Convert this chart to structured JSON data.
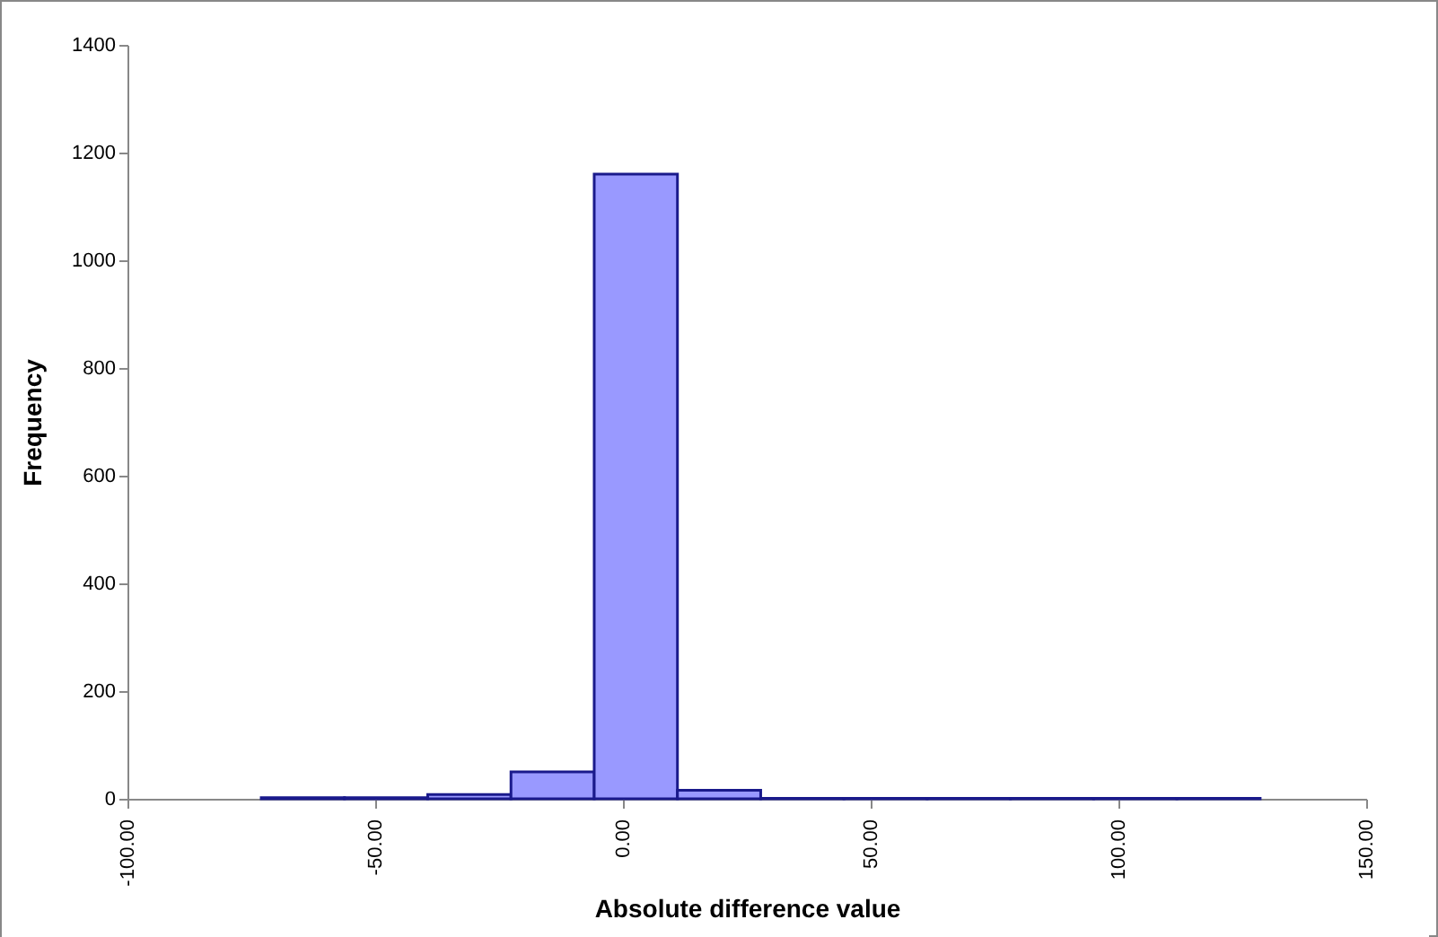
{
  "chart_data": {
    "type": "histogram",
    "xlabel": "Absolute difference value",
    "ylabel": "Frequency",
    "bins": [
      -73.0,
      -56.2,
      -39.4,
      -22.6,
      -5.8,
      11.0,
      27.8,
      44.6,
      61.4,
      78.2,
      95.0,
      111.8,
      128.6
    ],
    "values": [
      2,
      2,
      8,
      50,
      1160,
      16,
      1,
      1,
      1,
      1,
      1,
      1
    ],
    "color": "#9999ff",
    "xlim": [
      -100,
      150
    ],
    "xticks": [
      {
        "value": -100,
        "label": "-100.00"
      },
      {
        "value": -50,
        "label": "-50.00"
      },
      {
        "value": 0,
        "label": "0.00"
      },
      {
        "value": 50,
        "label": "50.00"
      },
      {
        "value": 100,
        "label": "100.00"
      },
      {
        "value": 150,
        "label": "150.00"
      }
    ],
    "ylim": [
      0,
      1400
    ],
    "yticks": [
      0,
      200,
      400,
      600,
      800,
      1000,
      1200,
      1400
    ],
    "grid": false
  }
}
